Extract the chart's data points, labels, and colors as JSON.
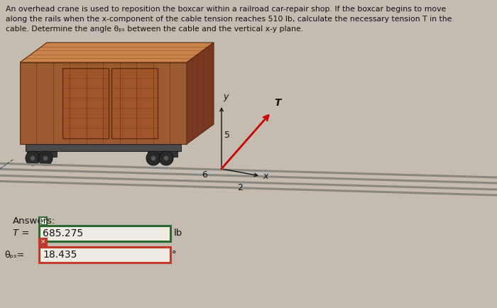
{
  "bg_color": "#c4bcb0",
  "problem_text_line1": "An overhead crane is used to reposition the boxcar within a railroad car-repair shop. If the boxcar begins to move",
  "problem_text_line2": "along the rails when the x-component of the cable tension reaches 510 lb, calculate the necessary tension T in the",
  "problem_text_line3": "cable. Determine the angle θₚₛ between the cable and the vertical x-y plane.",
  "answers_label": "Answers:",
  "T_label": "T =",
  "T_value": "685.275",
  "T_unit": "lb",
  "theta_label": "θₚₛ=",
  "theta_value": "18.435",
  "theta_unit": "°",
  "green_box_color": "#2d6a2d",
  "red_box_color": "#c0392b",
  "text_color": "#111111",
  "box_inner_color": "#f0ece4",
  "axis_label_x": "x",
  "axis_label_y": "y",
  "coord_numbers": [
    "6",
    "5",
    "2"
  ],
  "T_arrow_label": "T",
  "arrow_color": "#cc0000",
  "car_side_color": "#9b5a30",
  "car_top_color": "#c8844a",
  "car_end_color": "#7a3820",
  "car_door_color": "#a0542a",
  "car_chassis_color": "#4a4a4a",
  "car_wheel_color": "#2a2a2a",
  "rail_color": "#888880"
}
